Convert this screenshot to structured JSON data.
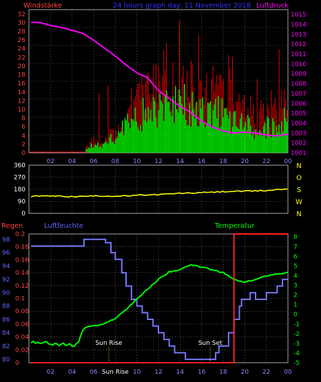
{
  "header": {
    "left_label": "Windstärke",
    "center_label": "24 hours graph day: 11 November 2018",
    "right_label": "Luftdruck"
  },
  "lower_labels": {
    "rain": "Regen",
    "humidity": "Luftfeuchte",
    "temperature": "Temperatur"
  },
  "colors": {
    "wind_speed": "#ff0000",
    "wind_gust": "#00ff00",
    "pressure": "#ff00ff",
    "wind_dir": "#ffff00",
    "humidity": "#7777ff",
    "temperature": "#00ff00",
    "rain": "#ff2222",
    "axis_left": "#ff4444",
    "axis_right": "#ff00ff",
    "axis_blue": "#6666ff",
    "axis_green": "#00ff00",
    "dir_letters": "#ffff00"
  },
  "chart_data": [
    {
      "type": "bar",
      "name": "wind",
      "x_ticks": [
        "02",
        "04",
        "06",
        "08",
        "10",
        "12",
        "14",
        "16",
        "18",
        "20",
        "22",
        "00"
      ],
      "y_left_ticks": [
        "0",
        "2",
        "4",
        "6",
        "8",
        "10",
        "12",
        "14",
        "16",
        "18",
        "20",
        "22",
        "24",
        "26",
        "28",
        "30",
        "32"
      ],
      "y_left_range": [
        0,
        33
      ],
      "y_right_ticks": [
        "1001",
        "1002",
        "1003",
        "1004",
        "1005",
        "1006",
        "1007",
        "1008",
        "1009",
        "1010",
        "1011",
        "1012",
        "1013",
        "1014",
        "1015"
      ],
      "y_right_range": [
        1001,
        1015.5
      ],
      "grid": true,
      "pressure_series": {
        "x": [
          0.2,
          1,
          2,
          3,
          4,
          5,
          6,
          7,
          8,
          9,
          10,
          11,
          12,
          13,
          14,
          15,
          16,
          17,
          18,
          19,
          20,
          21,
          22,
          23,
          24
        ],
        "y": [
          1014.2,
          1014.2,
          1013.9,
          1013.7,
          1013.4,
          1013.1,
          1012.4,
          1011.6,
          1010.8,
          1009.9,
          1009.1,
          1008.6,
          1007.3,
          1006.5,
          1005.7,
          1005.1,
          1004.2,
          1003.6,
          1003.2,
          1003.0,
          1003.1,
          1003.0,
          1002.8,
          1002.7,
          1002.9
        ]
      },
      "wind_profile": {
        "x": [
          0,
          1,
          2,
          3,
          4,
          5,
          5.5,
          6,
          7,
          8,
          9,
          10,
          11,
          12,
          13,
          14,
          15,
          16,
          17,
          18,
          19,
          20,
          21,
          22,
          23,
          24
        ],
        "gust": [
          0,
          0,
          0,
          0,
          0,
          0,
          2,
          3,
          3,
          6,
          9,
          14,
          15,
          16,
          16,
          17,
          16,
          15,
          15,
          14,
          13,
          11,
          9,
          9,
          10,
          12
        ],
        "speed": [
          0,
          0,
          0,
          0,
          0,
          0,
          1,
          2,
          2,
          4,
          7,
          9,
          10,
          11,
          11,
          12,
          11,
          10,
          10,
          9,
          8,
          7,
          6,
          6,
          7,
          8
        ]
      }
    },
    {
      "type": "line",
      "name": "wind-direction",
      "x_ticks": [
        "02",
        "04",
        "06",
        "08",
        "10",
        "12",
        "14",
        "16",
        "18",
        "20",
        "22",
        "00"
      ],
      "y_ticks": [
        "0",
        "90",
        "180",
        "270",
        "360"
      ],
      "y_range": [
        0,
        360
      ],
      "dir_letters": [
        "N",
        "W",
        "S",
        "O",
        "N"
      ],
      "grid": true,
      "series": {
        "x": [
          0.2,
          1,
          2,
          3,
          4,
          5,
          6,
          7,
          8,
          9,
          10,
          11,
          12,
          13,
          14,
          15,
          16,
          17,
          18,
          19,
          20,
          21,
          22,
          23,
          24
        ],
        "y": [
          125,
          130,
          130,
          128,
          125,
          127,
          130,
          130,
          128,
          130,
          135,
          138,
          140,
          145,
          150,
          152,
          155,
          158,
          162,
          165,
          165,
          168,
          170,
          178,
          183
        ]
      }
    },
    {
      "type": "line",
      "name": "rain-humidity-temperature",
      "x_ticks": [
        "02",
        "04",
        "06",
        "Sun Rise",
        "10",
        "12",
        "14",
        "16",
        "18",
        "20",
        "22",
        "00"
      ],
      "sun_rise_label": "Sun Rise",
      "sun_set_label": "Sun Set",
      "sun_rise_x": 7.4,
      "sun_set_x": 16.8,
      "rain_ticks": [
        "0",
        "0.02",
        "0.04",
        "0.06",
        "0.08",
        "0.1",
        "0.12",
        "0.14",
        "0.16",
        "0.18",
        "0.2"
      ],
      "rain_range": [
        0,
        0.2
      ],
      "humidity_ticks": [
        "80",
        "82",
        "84",
        "86",
        "88",
        "90",
        "92",
        "94",
        "96",
        "98"
      ],
      "humidity_range": [
        79.5,
        98.8
      ],
      "temperature_ticks": [
        "-5",
        "-4",
        "-3",
        "-2",
        "-1",
        "0",
        "1",
        "2",
        "3",
        "4",
        "5",
        "6",
        "7",
        "8"
      ],
      "temperature_range": [
        -5,
        8.3
      ],
      "grid": true,
      "humidity_series": {
        "x": [
          0.2,
          5,
          5.1,
          7,
          7.1,
          7.6,
          8,
          8.6,
          9,
          9.5,
          10,
          10.5,
          11,
          11.5,
          12,
          12.5,
          13,
          13.5,
          14,
          14.5,
          15,
          16,
          17,
          17.3,
          17.6,
          18,
          18.5,
          19,
          19.5,
          19.7,
          20,
          20.5,
          21,
          21.5,
          22,
          22.5,
          23,
          23.5,
          24
        ],
        "y": [
          97,
          97,
          98,
          98,
          97.5,
          96,
          95,
          93,
          91,
          89,
          88,
          87,
          86,
          85,
          84,
          83,
          82,
          81,
          81,
          80,
          80,
          80,
          80,
          81,
          82,
          82,
          84,
          86,
          88,
          89,
          89,
          90,
          89,
          89,
          90,
          90,
          91,
          92,
          92
        ]
      },
      "temperature_series": {
        "x": [
          0.2,
          1,
          2,
          3,
          4,
          4.5,
          5,
          5.5,
          6,
          7,
          8,
          9,
          10,
          11,
          12,
          13,
          14,
          15,
          16,
          17,
          18,
          19,
          20,
          21,
          22,
          23,
          24
        ],
        "y": [
          -2.8,
          -2.9,
          -3.0,
          -3.1,
          -3.2,
          -3.1,
          -1.6,
          -1.2,
          -1.2,
          -1.0,
          -0.4,
          0.5,
          1.6,
          2.6,
          3.6,
          4.4,
          4.6,
          5.1,
          4.9,
          4.6,
          4.3,
          3.6,
          3.3,
          3.6,
          4.0,
          4.2,
          4.3
        ]
      },
      "rain_series": {
        "x": [
          0.2,
          19.0,
          19.0,
          24.0
        ],
        "y": [
          0,
          0,
          0.2,
          0.2
        ]
      }
    }
  ]
}
